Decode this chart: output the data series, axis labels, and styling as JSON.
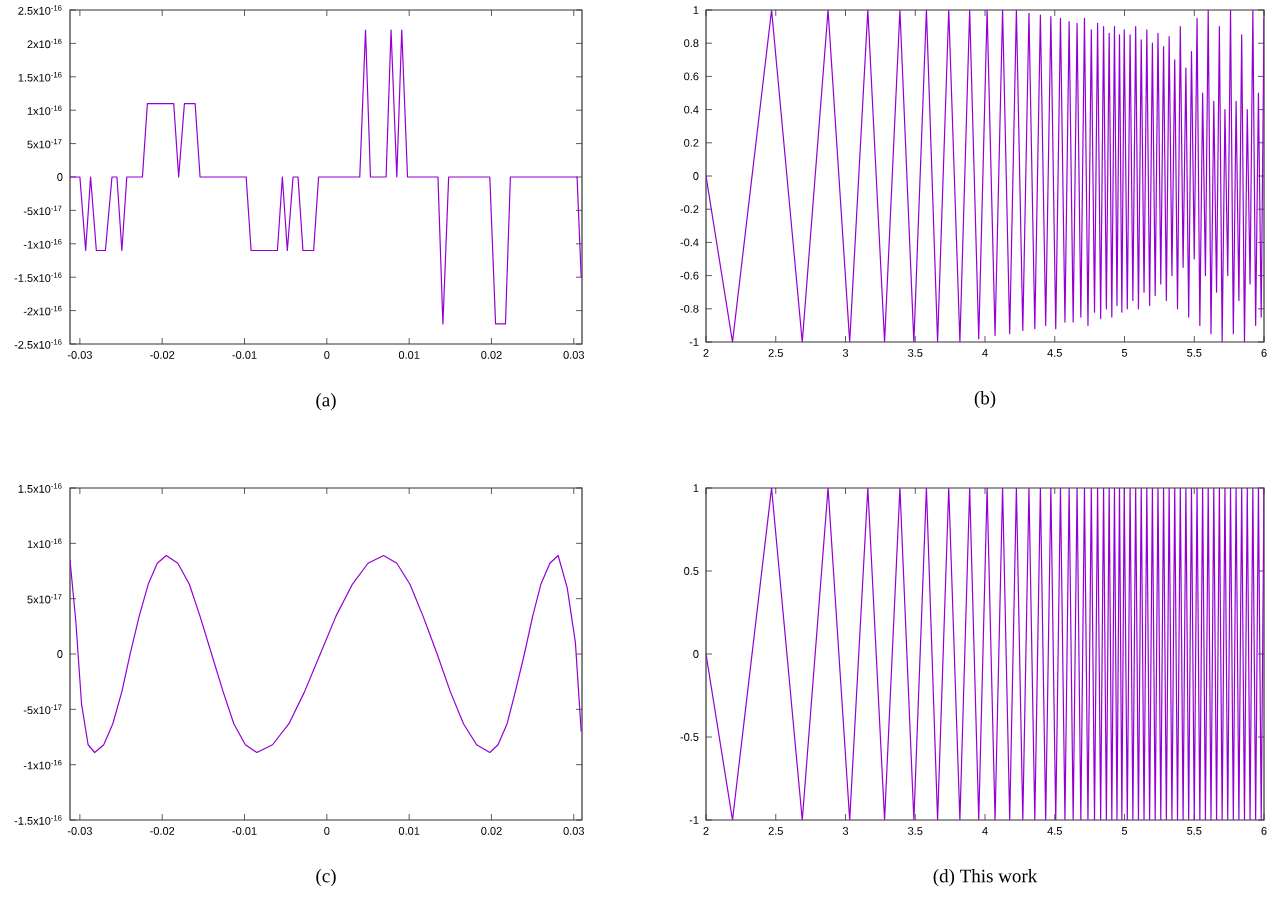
{
  "chart_data": [
    {
      "type": "line",
      "title": "(a)",
      "color": "#9400d3",
      "marker": "none",
      "line_style": "solid",
      "grid": false,
      "xlim": [
        -0.0312,
        0.031
      ],
      "ylim": [
        -2.5e-16,
        2.5e-16
      ],
      "xticks": [
        -0.03,
        -0.02,
        -0.01,
        0,
        0.01,
        0.02,
        0.03
      ],
      "yticks": [
        {
          "value": -2.5e-16,
          "label": "-2.5x10$^{-16}$"
        },
        {
          "value": -2e-16,
          "label": "-2x10$^{-16}$"
        },
        {
          "value": -1.5e-16,
          "label": "-1.5x10$^{-16}$"
        },
        {
          "value": -1e-16,
          "label": "-1x10$^{-16}$"
        },
        {
          "value": -5e-17,
          "label": "-5x10$^{-17}$"
        },
        0,
        {
          "value": 5e-17,
          "label": "5x10$^{-17}$"
        },
        {
          "value": 1e-16,
          "label": "1x10$^{-16}$"
        },
        {
          "value": 1.5e-16,
          "label": "1.5x10$^{-16}$"
        },
        {
          "value": 2e-16,
          "label": "2x10$^{-16}$"
        },
        {
          "value": 2.5e-16,
          "label": "2.5x10$^{-16}$"
        }
      ],
      "x": [
        -0.0312,
        -0.03,
        -0.0293,
        -0.0287,
        -0.028,
        -0.0269,
        -0.0261,
        -0.0255,
        -0.0249,
        -0.0243,
        -0.0224,
        -0.0218,
        -0.0186,
        -0.018,
        -0.0173,
        -0.016,
        -0.0154,
        -0.0098,
        -0.0092,
        -0.006,
        -0.0054,
        -0.0048,
        -0.0041,
        -0.0035,
        -0.0029,
        -0.0016,
        -0.001,
        0.004,
        0.0047,
        0.0053,
        0.0072,
        0.0078,
        0.0085,
        0.0091,
        0.0098,
        0.0135,
        0.0141,
        0.0148,
        0.0198,
        0.0205,
        0.0217,
        0.0223,
        0.0304,
        0.0309
      ],
      "values": [
        0,
        0,
        -1.1e-16,
        0,
        -1.1e-16,
        -1.1e-16,
        0,
        0,
        -1.1e-16,
        0,
        0,
        1.1e-16,
        1.1e-16,
        0,
        1.1e-16,
        1.1e-16,
        0,
        0,
        -1.1e-16,
        -1.1e-16,
        0,
        -1.1e-16,
        0,
        0,
        -1.1e-16,
        -1.1e-16,
        0,
        0,
        2.2e-16,
        0,
        0,
        2.2e-16,
        0,
        2.2e-16,
        0,
        0,
        -2.2e-16,
        0,
        0,
        -2.2e-16,
        -2.2e-16,
        0,
        0,
        -1.5e-16
      ]
    },
    {
      "type": "line",
      "title": "(b)",
      "color": "#9400d3",
      "marker": "none",
      "line_style": "solid",
      "grid": false,
      "xlim": [
        2,
        6
      ],
      "ylim": [
        -1,
        1
      ],
      "xticks": [
        2,
        2.5,
        3,
        3.5,
        4,
        4.5,
        5,
        5.5,
        6
      ],
      "yticks": [
        -1,
        -0.8,
        -0.6,
        -0.4,
        -0.2,
        0,
        0.2,
        0.4,
        0.6,
        0.8,
        1
      ],
      "x": [
        2,
        2.19,
        2.47,
        2.69,
        2.875,
        3.03,
        3.16,
        3.28,
        3.39,
        3.49,
        3.58,
        3.66,
        3.74,
        3.82,
        3.89,
        3.955,
        4.015,
        4.072,
        4.126,
        4.177,
        4.225,
        4.271,
        4.315,
        4.357,
        4.397,
        4.435,
        4.472,
        4.507,
        4.541,
        4.573,
        4.603,
        4.632,
        4.66,
        4.687,
        4.713,
        4.738,
        4.762,
        4.785,
        4.807,
        4.829,
        4.85,
        4.87,
        4.89,
        4.909,
        4.928,
        4.946,
        4.964,
        4.981,
        4.998,
        5.02,
        5.04,
        5.06,
        5.08,
        5.1,
        5.12,
        5.14,
        5.16,
        5.18,
        5.2,
        5.22,
        5.24,
        5.26,
        5.28,
        5.3,
        5.32,
        5.34,
        5.36,
        5.38,
        5.4,
        5.42,
        5.44,
        5.46,
        5.48,
        5.5,
        5.52,
        5.54,
        5.56,
        5.58,
        5.6,
        5.62,
        5.64,
        5.66,
        5.68,
        5.7,
        5.72,
        5.74,
        5.76,
        5.78,
        5.8,
        5.82,
        5.84,
        5.86,
        5.88,
        5.9,
        5.92,
        5.94,
        5.96,
        5.98,
        6
      ],
      "values": [
        0,
        -1,
        1,
        -1,
        1,
        -1,
        1,
        -1,
        1,
        -1,
        1,
        -1,
        1,
        -1,
        1,
        -0.98,
        1,
        -0.96,
        1,
        -0.95,
        1,
        -0.93,
        0.98,
        -0.92,
        0.97,
        -0.9,
        0.96,
        -0.92,
        0.95,
        -0.88,
        0.93,
        -0.88,
        0.92,
        -0.85,
        0.95,
        -0.9,
        0.88,
        -0.82,
        0.92,
        -0.86,
        0.9,
        -0.8,
        0.86,
        -0.85,
        0.9,
        -0.78,
        0.85,
        -0.82,
        0.88,
        -0.8,
        0.85,
        -0.75,
        0.9,
        -0.8,
        0.82,
        -0.7,
        0.88,
        -0.78,
        0.8,
        -0.72,
        0.86,
        -0.65,
        0.78,
        -0.75,
        0.84,
        -0.6,
        0.7,
        -0.8,
        0.9,
        -0.55,
        0.65,
        -0.85,
        0.75,
        -0.5,
        0.95,
        -0.9,
        0.5,
        -0.6,
        1,
        -0.95,
        0.45,
        -0.7,
        0.9,
        -1,
        0.4,
        -0.6,
        1,
        -0.95,
        0.45,
        -0.75,
        0.85,
        -1,
        0.4,
        -0.65,
        1,
        -0.9,
        0.5,
        -0.85,
        0.95
      ]
    },
    {
      "type": "line",
      "title": "(c)",
      "color": "#9400d3",
      "marker": "none",
      "line_style": "solid",
      "grid": false,
      "xlim": [
        -0.0312,
        0.031
      ],
      "ylim": [
        -1.5e-16,
        1.5e-16
      ],
      "xticks": [
        -0.03,
        -0.02,
        -0.01,
        0,
        0.01,
        0.02,
        0.03
      ],
      "yticks": [
        {
          "value": -1.5e-16,
          "label": "-1.5x10$^{-16}$"
        },
        {
          "value": -1e-16,
          "label": "-1x10$^{-16}$"
        },
        {
          "value": -5e-17,
          "label": "-5x10$^{-17}$"
        },
        0,
        {
          "value": 5e-17,
          "label": "5x10$^{-17}$"
        },
        {
          "value": 1e-16,
          "label": "1x10$^{-16}$"
        },
        {
          "value": 1.5e-16,
          "label": "1.5x10$^{-16}$"
        }
      ],
      "x": [
        -0.0312,
        -0.0305,
        -0.0298,
        -0.029,
        -0.0282,
        -0.0271,
        -0.026,
        -0.0249,
        -0.0239,
        -0.0228,
        -0.0217,
        -0.0206,
        -0.0195,
        -0.0181,
        -0.0167,
        -0.0154,
        -0.014,
        -0.0126,
        -0.0113,
        -0.0099,
        -0.0085,
        -0.0066,
        -0.0046,
        -0.0027,
        -0.0008,
        0.0011,
        0.0031,
        0.005,
        0.0069,
        0.0085,
        0.0101,
        0.0117,
        0.0134,
        0.015,
        0.0166,
        0.0182,
        0.0198,
        0.0208,
        0.0219,
        0.0229,
        0.024,
        0.025,
        0.026,
        0.0271,
        0.0281,
        0.0292,
        0.0302,
        0.0309
      ],
      "values": [
        8.5e-17,
        3e-17,
        -4.5e-17,
        -8.2e-17,
        -8.9e-17,
        -8.2e-17,
        -6.3e-17,
        -3.4e-17,
        0,
        3.4e-17,
        6.3e-17,
        8.2e-17,
        8.9e-17,
        8.2e-17,
        6.3e-17,
        3.4e-17,
        0,
        -3.4e-17,
        -6.3e-17,
        -8.2e-17,
        -8.9e-17,
        -8.2e-17,
        -6.3e-17,
        -3.4e-17,
        0,
        3.4e-17,
        6.3e-17,
        8.2e-17,
        8.9e-17,
        8.2e-17,
        6.3e-17,
        3.4e-17,
        0,
        -3.4e-17,
        -6.3e-17,
        -8.2e-17,
        -8.9e-17,
        -8.2e-17,
        -6.3e-17,
        -3.4e-17,
        0,
        3.4e-17,
        6.3e-17,
        8.2e-17,
        8.9e-17,
        6e-17,
        1e-17,
        -7e-17
      ]
    },
    {
      "type": "line",
      "title": "(d) This work",
      "color": "#9400d3",
      "marker": "none",
      "line_style": "solid",
      "grid": false,
      "xlim": [
        2,
        6
      ],
      "ylim": [
        -1,
        1
      ],
      "xticks": [
        2,
        2.5,
        3,
        3.5,
        4,
        4.5,
        5,
        5.5,
        6
      ],
      "yticks": [
        -1,
        -0.5,
        0,
        0.5,
        1
      ],
      "x": [
        2,
        2.19,
        2.47,
        2.69,
        2.875,
        3.03,
        3.16,
        3.28,
        3.39,
        3.49,
        3.58,
        3.66,
        3.74,
        3.82,
        3.89,
        3.955,
        4.015,
        4.072,
        4.126,
        4.177,
        4.225,
        4.271,
        4.315,
        4.357,
        4.397,
        4.435,
        4.472,
        4.507,
        4.541,
        4.573,
        4.603,
        4.632,
        4.66,
        4.687,
        4.713,
        4.738,
        4.762,
        4.785,
        4.807,
        4.829,
        4.85,
        4.87,
        4.89,
        4.909,
        4.928,
        4.946,
        4.964,
        4.981,
        4.998,
        5.02,
        5.04,
        5.06,
        5.08,
        5.1,
        5.12,
        5.14,
        5.16,
        5.18,
        5.2,
        5.22,
        5.24,
        5.26,
        5.28,
        5.3,
        5.32,
        5.34,
        5.36,
        5.38,
        5.4,
        5.42,
        5.44,
        5.46,
        5.48,
        5.5,
        5.52,
        5.54,
        5.56,
        5.58,
        5.6,
        5.62,
        5.64,
        5.66,
        5.68,
        5.7,
        5.72,
        5.74,
        5.76,
        5.78,
        5.8,
        5.82,
        5.84,
        5.86,
        5.88,
        5.9,
        5.92,
        5.94,
        5.96,
        5.98,
        6
      ],
      "values": [
        0,
        -1,
        1,
        -1,
        1,
        -1,
        1,
        -1,
        1,
        -1,
        1,
        -1,
        1,
        -1,
        1,
        -1,
        1,
        -1,
        1,
        -1,
        1,
        -1,
        1,
        -1,
        1,
        -1,
        1,
        -1,
        1,
        -1,
        1,
        -1,
        1,
        -1,
        1,
        -1,
        1,
        -1,
        1,
        -1,
        1,
        -1,
        1,
        -1,
        1,
        -1,
        1,
        -1,
        1,
        -1,
        1,
        -1,
        1,
        -1,
        1,
        -1,
        1,
        -1,
        1,
        -1,
        1,
        -1,
        1,
        -1,
        1,
        -1,
        1,
        -1,
        1,
        -1,
        1,
        -1,
        1,
        -1,
        1,
        -1,
        1,
        -1,
        1,
        -1,
        1,
        -1,
        1,
        -1,
        1,
        -1,
        1,
        -1,
        1,
        -1,
        1,
        -1,
        1,
        -1,
        1,
        -1,
        1,
        -1,
        1
      ]
    }
  ]
}
